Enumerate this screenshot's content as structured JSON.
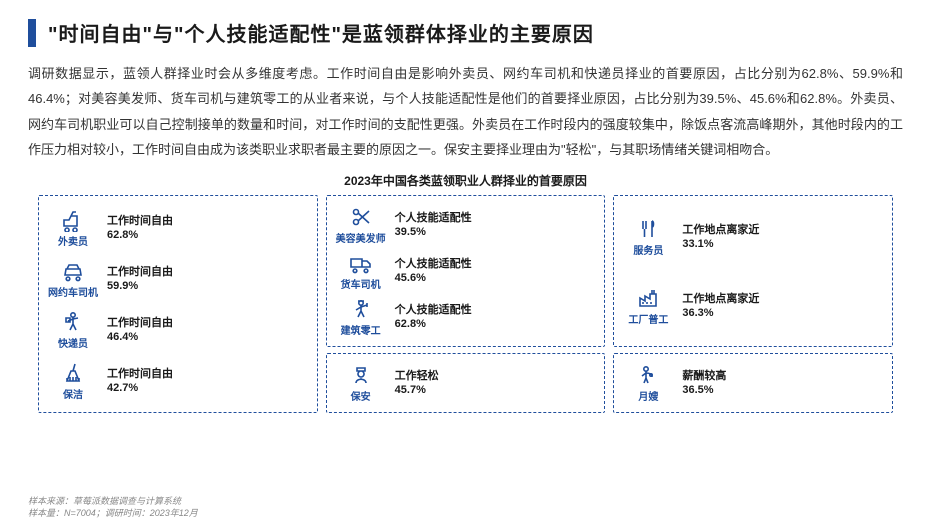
{
  "title": "\"时间自由\"与\"个人技能适配性\"是蓝领群体择业的主要原因",
  "body": "调研数据显示，蓝领人群择业时会从多维度考虑。工作时间自由是影响外卖员、网约车司机和快递员择业的首要原因，占比分别为62.8%、59.9%和46.4%；对美容美发师、货车司机与建筑零工的从业者来说，与个人技能适配性是他们的首要择业原因，占比分别为39.5%、45.6%和62.8%。外卖员、网约车司机职业可以自己控制接单的数量和时间，对工作时间的支配性更强。外卖员在工作时段内的强度较集中，除饭点客流高峰期外，其他时段内的工作压力相对较小，工作时间自由成为该类职业求职者最主要的原因之一。保安主要择业理由为\"轻松\"，与其职场情绪关键词相吻合。",
  "chart_title": "2023年中国各类蓝领职业人群择业的首要原因",
  "colors": {
    "accent": "#1f4e9c",
    "text": "#1a1a1a",
    "body_text": "#333333",
    "footer": "#888888",
    "bg": "#ffffff"
  },
  "fonts": {
    "title_size": 20,
    "body_size": 13,
    "chart_title_size": 12,
    "job_size": 10,
    "reason_size": 11,
    "footer_size": 9
  },
  "groups": [
    {
      "boxes": [
        {
          "items": [
            {
              "job": "外卖员",
              "reason": "工作时间自由",
              "pct": "62.8%",
              "icon": "delivery"
            },
            {
              "job": "网约车司机",
              "reason": "工作时间自由",
              "pct": "59.9%",
              "icon": "car"
            },
            {
              "job": "快递员",
              "reason": "工作时间自由",
              "pct": "46.4%",
              "icon": "courier"
            },
            {
              "job": "保洁",
              "reason": "工作时间自由",
              "pct": "42.7%",
              "icon": "cleaning"
            }
          ]
        }
      ]
    },
    {
      "boxes": [
        {
          "items": [
            {
              "job": "美容美发师",
              "reason": "个人技能适配性",
              "pct": "39.5%",
              "icon": "scissors"
            },
            {
              "job": "货车司机",
              "reason": "个人技能适配性",
              "pct": "45.6%",
              "icon": "truck"
            },
            {
              "job": "建筑零工",
              "reason": "个人技能适配性",
              "pct": "62.8%",
              "icon": "construction"
            }
          ]
        },
        {
          "items": [
            {
              "job": "保安",
              "reason": "工作轻松",
              "pct": "45.7%",
              "icon": "guard"
            }
          ]
        }
      ]
    },
    {
      "boxes": [
        {
          "items": [
            {
              "job": "服务员",
              "reason": "工作地点离家近",
              "pct": "33.1%",
              "icon": "waiter"
            },
            {
              "job": "工厂普工",
              "reason": "工作地点离家近",
              "pct": "36.3%",
              "icon": "factory"
            }
          ]
        },
        {
          "items": [
            {
              "job": "月嫂",
              "reason": "薪酬较高",
              "pct": "36.5%",
              "icon": "nanny"
            }
          ]
        }
      ]
    }
  ],
  "footer": {
    "line1": "样本来源：草莓派数据调查与计算系统",
    "line2": "样本量：N=7004；调研时间：2023年12月"
  }
}
